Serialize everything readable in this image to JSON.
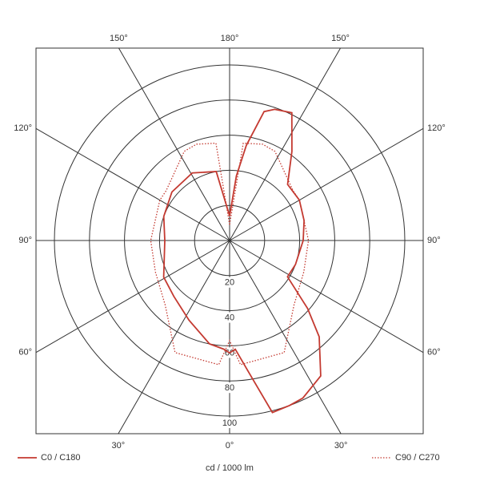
{
  "chart_data": {
    "type": "polar",
    "axis_label": "cd / 1000 lm",
    "rlim": [
      0,
      100
    ],
    "rticks": [
      20,
      40,
      60,
      80,
      100
    ],
    "angle_ticks": [
      {
        "value": -150,
        "label": "150°"
      },
      {
        "value": 180,
        "label": "180°"
      },
      {
        "value": 150,
        "label": "150°"
      },
      {
        "value": -120,
        "label": "120°"
      },
      {
        "value": -90,
        "label": "90°"
      },
      {
        "value": -60,
        "label": "60°"
      },
      {
        "value": 120,
        "label": "120°"
      },
      {
        "value": 90,
        "label": "90°"
      },
      {
        "value": 60,
        "label": "60°"
      },
      {
        "value": -30,
        "label": "30°"
      },
      {
        "value": 0,
        "label": "0°"
      },
      {
        "value": 30,
        "label": "30°"
      }
    ],
    "series": [
      {
        "name": "C0 / C180",
        "color": "#c43a31",
        "style": "solid",
        "theta": [
          -180,
          -169,
          -151,
          -130,
          -110,
          -90,
          -61,
          -45,
          -27,
          -11,
          -3,
          0,
          3,
          8,
          14,
          20,
          25,
          34,
          43,
          49,
          58,
          70,
          90,
          105,
          120,
          134,
          145,
          154,
          161,
          165,
          170,
          174
        ],
        "values": [
          14,
          40,
          44,
          43,
          40,
          37,
          43,
          45,
          51,
          60,
          62,
          64,
          62,
          75,
          101,
          100,
          99,
          93,
          75,
          59,
          39,
          40,
          42,
          44,
          46,
          46,
          62,
          81,
          79,
          76,
          55,
          37
        ]
      },
      {
        "name": "C90 / C270",
        "color": "#c43a31",
        "style": "dotted",
        "theta": [
          -180,
          -172,
          -161,
          -153,
          -128,
          -120,
          -90,
          -67,
          -45,
          -26,
          -5,
          0,
          5,
          26,
          45,
          67,
          90,
          120,
          128,
          153,
          161,
          172
        ],
        "values": [
          9,
          56,
          58,
          57,
          46,
          46,
          45,
          46,
          52,
          71,
          71,
          57,
          71,
          71,
          52,
          46,
          45,
          46,
          46,
          57,
          58,
          56
        ]
      }
    ]
  }
}
